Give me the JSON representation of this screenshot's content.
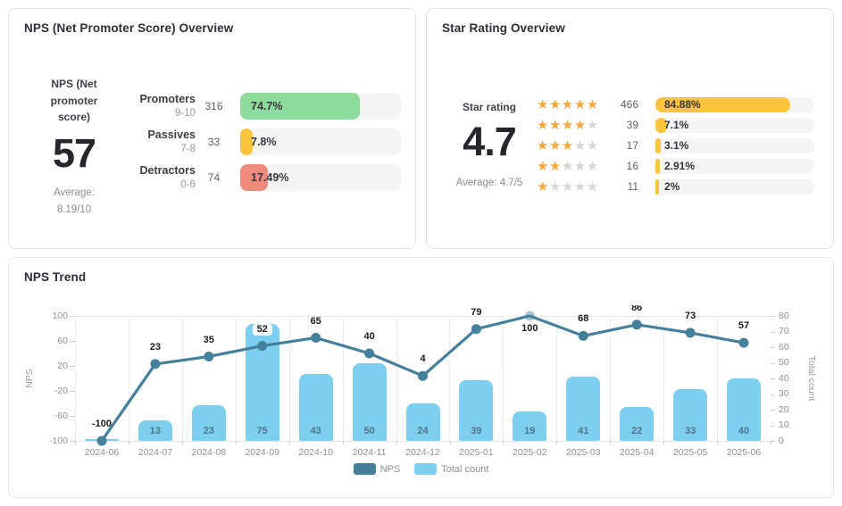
{
  "nps_card": {
    "title": "NPS (Net Promoter Score) Overview",
    "score_label": "NPS (Net promoter score)",
    "score": "57",
    "average_line1": "Average:",
    "average_line2": "8.19/10",
    "track_color": "#f4f4f5",
    "rows": [
      {
        "label": "Promoters",
        "range": "9-10",
        "count": "316",
        "pct_label": "74.7%",
        "pct": 74.7,
        "color": "#8edc9d"
      },
      {
        "label": "Passives",
        "range": "7-8",
        "count": "33",
        "pct_label": "7.8%",
        "pct": 7.8,
        "color": "#f8c53c"
      },
      {
        "label": "Detractors",
        "range": "0-6",
        "count": "74",
        "pct_label": "17.49%",
        "pct": 17.49,
        "color": "#ee8b7c"
      }
    ]
  },
  "star_card": {
    "title": "Star Rating Overview",
    "score_label": "Star rating",
    "score": "4.7",
    "average": "Average: 4.7/5",
    "track_color": "#f4f4f5",
    "bar_color": "#f8c53c",
    "star_filled_color": "#f6a83c",
    "star_empty_color": "#d7d7d9",
    "rows": [
      {
        "stars": 5,
        "count": "466",
        "pct_label": "84.88%",
        "pct": 84.88
      },
      {
        "stars": 4,
        "count": "39",
        "pct_label": "7.1%",
        "pct": 7.1
      },
      {
        "stars": 3,
        "count": "17",
        "pct_label": "3.1%",
        "pct": 3.1
      },
      {
        "stars": 2,
        "count": "16",
        "pct_label": "2.91%",
        "pct": 2.91
      },
      {
        "stars": 1,
        "count": "11",
        "pct_label": "2%",
        "pct": 2
      }
    ]
  },
  "trend_card": {
    "title": "NPS Trend"
  },
  "chart_data": {
    "type": "combo-bar-line",
    "title": "NPS Trend",
    "categories": [
      "2024-06",
      "2024-07",
      "2024-08",
      "2024-09",
      "2024-10",
      "2024-11",
      "2024-12",
      "2025-01",
      "2025-02",
      "2025-03",
      "2025-04",
      "2025-05",
      "2025-06"
    ],
    "series": [
      {
        "name": "NPS",
        "type": "line",
        "axis": "left",
        "color": "#44809b",
        "values": [
          -100,
          23,
          35,
          52,
          65,
          40,
          4,
          79,
          100,
          68,
          86,
          73,
          57
        ]
      },
      {
        "name": "Total count",
        "type": "bar",
        "axis": "right",
        "color": "#7dcff0",
        "values": [
          1,
          13,
          23,
          75,
          43,
          50,
          24,
          39,
          19,
          41,
          22,
          33,
          40
        ]
      }
    ],
    "left_axis": {
      "label": "NPS",
      "min": -100,
      "max": 100,
      "ticks": [
        100,
        60,
        20,
        -20,
        -60,
        -100
      ]
    },
    "right_axis": {
      "label": "Total count",
      "min": 0,
      "max": 80,
      "ticks": [
        80,
        70,
        60,
        50,
        40,
        30,
        20,
        10,
        0
      ]
    },
    "legend": [
      {
        "name": "NPS",
        "color": "#44809b"
      },
      {
        "name": "Total count",
        "color": "#7dcff0"
      }
    ],
    "grid": "vertical splitlines, top and bottom border lines",
    "legend_position": "bottom-center",
    "bar_label_color": "#527285",
    "max_point_color": "#a7c7d6"
  }
}
